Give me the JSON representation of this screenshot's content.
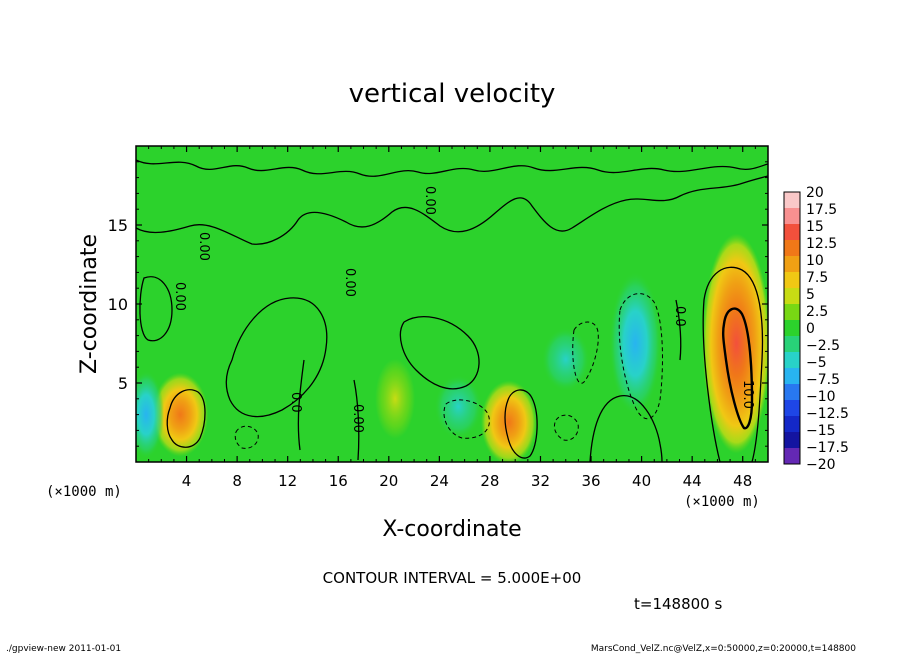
{
  "chart_data": {
    "type": "heatmap",
    "title": "vertical velocity",
    "xlabel": "X-coordinate",
    "ylabel": "Z-coordinate",
    "x_unit_label": "(×1000 m)",
    "xlim": [
      0,
      50
    ],
    "ylim": [
      0,
      20
    ],
    "x_ticks": [
      4,
      8,
      12,
      16,
      20,
      24,
      28,
      32,
      36,
      40,
      44,
      48
    ],
    "x_tick_labels": [
      "4",
      "8",
      "12",
      "16",
      "20",
      "24",
      "28",
      "32",
      "36",
      "40",
      "44",
      "48"
    ],
    "y_ticks": [
      5,
      10,
      15
    ],
    "y_tick_labels": [
      "5",
      "10",
      "15"
    ],
    "colorbar": {
      "levels": [
        "20",
        "17.5",
        "15",
        "12.5",
        "10",
        "7.5",
        "5",
        "2.5",
        "0",
        "−2.5",
        "−5",
        "−7.5",
        "−10",
        "−12.5",
        "−15",
        "−17.5",
        "−20"
      ],
      "colors": [
        "#fac8c8",
        "#f89090",
        "#f2503c",
        "#f07818",
        "#f0a014",
        "#f0c814",
        "#c8dc14",
        "#78d814",
        "#2cd22c",
        "#28d278",
        "#28d2c8",
        "#28b4f0",
        "#2878f0",
        "#1e46e6",
        "#1428c8",
        "#1414a0",
        "#6428b4"
      ]
    },
    "contour_labels": [
      "0.00",
      "0.00",
      "0.00",
      "0.00",
      "0.0",
      "0.00",
      "0.0",
      "10.0"
    ],
    "features": [
      {
        "kind": "updraft",
        "x": 3.5,
        "z": 3.0,
        "value": 7
      },
      {
        "kind": "updraft",
        "x": 29.5,
        "z": 2.5,
        "value": 7
      },
      {
        "kind": "updraft",
        "x": 47.5,
        "z": 7.5,
        "value": 13
      },
      {
        "kind": "updraft",
        "x": 20.5,
        "z": 4.0,
        "value": 4
      },
      {
        "kind": "downdraft",
        "x": 39.5,
        "z": 7.5,
        "value": -6
      },
      {
        "kind": "downdraft",
        "x": 0.8,
        "z": 3.0,
        "value": -5
      },
      {
        "kind": "downdraft",
        "x": 25.5,
        "z": 3.5,
        "value": -4
      },
      {
        "kind": "downdraft",
        "x": 34.0,
        "z": 6.5,
        "value": -3
      }
    ]
  },
  "contour_interval": "CONTOUR INTERVAL = 5.000E+00",
  "time_label": "t=148800  s",
  "footer": {
    "left": "./gpview-new   2011-01-01",
    "right": "MarsCond_VelZ.nc@VelZ,x=0:50000,z=0:20000,t=148800"
  }
}
